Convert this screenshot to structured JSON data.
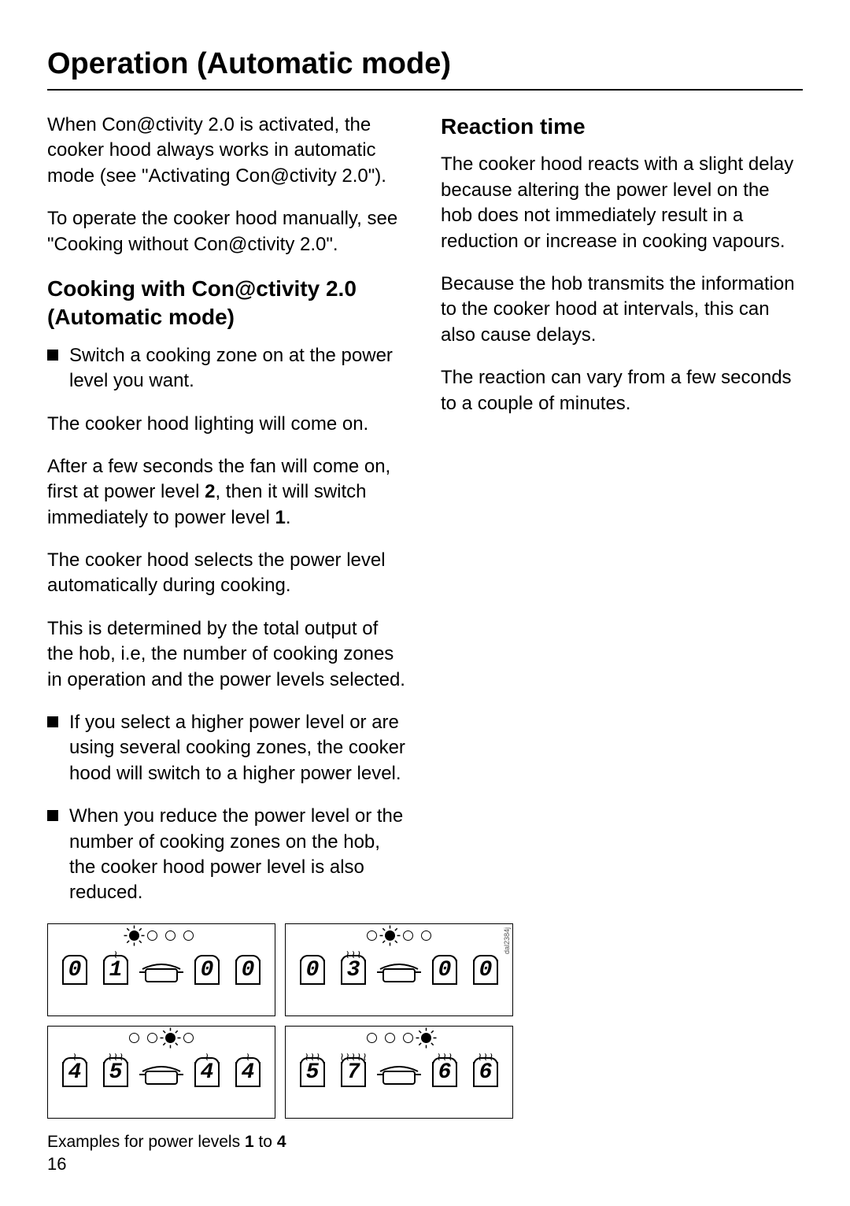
{
  "page": {
    "title": "Operation (Automatic mode)",
    "number": "16"
  },
  "left": {
    "intro1": "When Con@ctivity 2.0 is activated, the cooker hood always works in automatic mode (see \"Activating Con@ctivity 2.0\").",
    "intro2": "To operate the cooker hood manually, see \"Cooking without Con@ctivity 2.0\".",
    "h2": "Cooking with Con@ctivity 2.0 (Automatic mode)",
    "b1": "Switch a cooking zone on at the power level you want.",
    "p1": "The cooker hood lighting will come on.",
    "p2_a": "After a few seconds the fan will come on, first at power level ",
    "p2_b": "2",
    "p2_c": ", then it will switch immediately to power level ",
    "p2_d": "1",
    "p2_e": ".",
    "p3": "The cooker hood selects the power level automatically during cooking.",
    "p4": "This is determined by the total output of the hob, i.e, the number of cooking zones in operation and the power levels selected.",
    "b2": "If you select a higher power level or are using several cooking zones, the cooker hood will switch to a higher power level.",
    "b3": "When you reduce the power level or the number of cooking zones on the hob, the cooker hood power level is also reduced.",
    "caption_a": "Examples for power levels ",
    "caption_b": "1",
    "caption_c": " to ",
    "caption_d": "4"
  },
  "right": {
    "h2": "Reaction time",
    "p1": "The cooker hood reacts with a slight delay because altering the power level on the hob does not immediately result in a reduction or increase in cooking vapours.",
    "p2": "Because the hob transmits the information to the cooker hood at intervals, this can also cause delays.",
    "p3": "The reaction can vary from a few seconds to a couple of minutes."
  },
  "figure": {
    "id_label": "dal2384j",
    "panels": [
      {
        "active_led": 0,
        "burners": [
          "0",
          "1",
          "0",
          "0"
        ],
        "flames": [
          0,
          1,
          0,
          0
        ]
      },
      {
        "active_led": 1,
        "burners": [
          "0",
          "3",
          "0",
          "0"
        ],
        "flames": [
          0,
          2,
          0,
          0
        ]
      },
      {
        "active_led": 2,
        "burners": [
          "4",
          "5",
          "4",
          "4"
        ],
        "flames": [
          1,
          2,
          1,
          1
        ]
      },
      {
        "active_led": 3,
        "burners": [
          "5",
          "7",
          "6",
          "6"
        ],
        "flames": [
          2,
          3,
          2,
          2
        ]
      }
    ],
    "colors": {
      "stroke": "#000000",
      "background": "#ffffff"
    }
  }
}
